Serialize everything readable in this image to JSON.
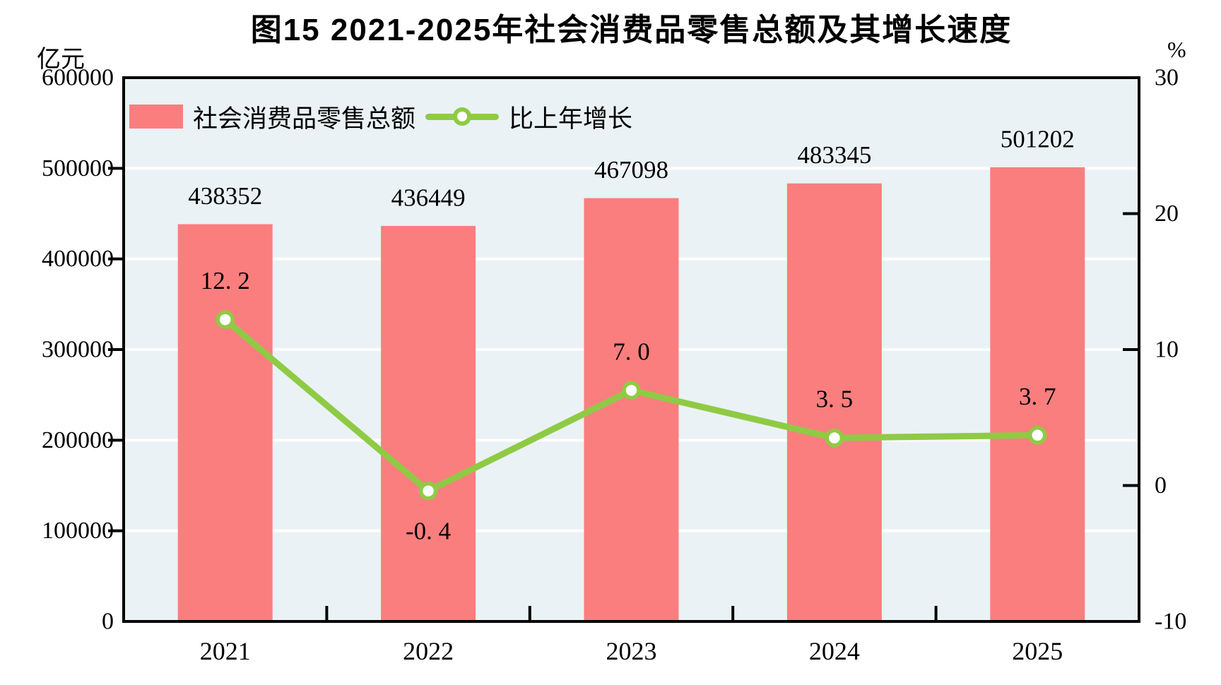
{
  "header": {
    "title": "图15  2021-2025年社会消费品零售总额及其增长速度",
    "left_unit": "亿元",
    "right_unit": "%"
  },
  "chart_data": {
    "type": "bar",
    "subtype": "bar+line-dual-axis",
    "title": "图15  2021-2025年社会消费品零售总额及其增长速度",
    "categories": [
      "2021",
      "2022",
      "2023",
      "2024",
      "2025"
    ],
    "series": [
      {
        "name": "社会消费品零售总额",
        "type": "bar",
        "axis": "left",
        "values": [
          438352,
          436449,
          467098,
          483345,
          501202
        ],
        "value_labels": [
          "438352",
          "436449",
          "467098",
          "483345",
          "501202"
        ],
        "color": "#FA7E7E"
      },
      {
        "name": "比上年增长",
        "type": "line",
        "axis": "right",
        "values": [
          12.2,
          -0.4,
          7.0,
          3.5,
          3.7
        ],
        "value_labels": [
          "12. 2",
          "-0. 4",
          "7. 0",
          "3. 5",
          "3. 7"
        ],
        "color": "#8FCA45",
        "marker_fill": "#FFFFFF"
      }
    ],
    "left_axis": {
      "unit": "亿元",
      "min": 0,
      "max": 600000,
      "step": 100000,
      "tick_labels": [
        "0",
        "100000",
        "200000",
        "300000",
        "400000",
        "500000",
        "600000"
      ]
    },
    "right_axis": {
      "unit": "%",
      "min": -10,
      "max": 30,
      "step": 10,
      "tick_labels": [
        "-10",
        "0",
        "10",
        "20",
        "30"
      ]
    },
    "grid": {
      "show": true,
      "color": "#FFFFFF"
    },
    "plot_background": "#EAF2F5",
    "axis_color": "#000000",
    "text_color": "#000000",
    "legend_position": "top-left-inside"
  }
}
